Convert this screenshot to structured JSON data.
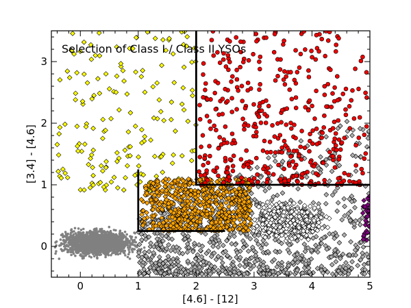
{
  "chart_data": {
    "type": "scatter",
    "title": "Selection of Class I / Class II YSOs",
    "xlabel": "[4.6] - [12]",
    "ylabel": "[3.4] - [4.6]",
    "xlim": [
      -0.5,
      5.0
    ],
    "ylim": [
      -0.5,
      3.5
    ],
    "xticks": [
      0,
      1,
      2,
      3,
      4,
      5
    ],
    "yticks": [
      0,
      1,
      2,
      3
    ],
    "grid": false,
    "selection_boundaries": [
      {
        "name": "class-i-cut",
        "x": [
          2.0,
          2.0,
          5.0
        ],
        "y": [
          3.5,
          1.0,
          1.0
        ]
      },
      {
        "name": "class-ii-cut",
        "x": [
          1.0,
          1.0,
          2.5
        ],
        "y": [
          1.25,
          0.25,
          0.25
        ]
      }
    ],
    "series": [
      {
        "color": "#808080",
        "marker": "dot",
        "approx_count": 3800,
        "region": {
          "x": [
            -0.5,
            2.2
          ],
          "y": [
            -0.3,
            0.9
          ]
        }
      },
      {
        "color": "#b0b0b0",
        "marker": "diamond",
        "approx_count": 2300,
        "region": {
          "x": [
            1.0,
            5.0
          ],
          "y": [
            -0.5,
            3.0
          ]
        }
      },
      {
        "color": "#ffffff",
        "marker": "diamond",
        "approx_count": 700,
        "region": {
          "x": [
            2.4,
            4.8
          ],
          "y": [
            -0.1,
            0.9
          ]
        }
      },
      {
        "color": "#ffff00",
        "marker": "diamond",
        "approx_count": 180,
        "region": {
          "x": [
            -0.5,
            2.0
          ],
          "y": [
            0.9,
            3.5
          ]
        }
      },
      {
        "color": "#ffa500",
        "marker": "diamond",
        "approx_count": 650,
        "region": {
          "x": [
            1.0,
            3.0
          ],
          "y": [
            0.25,
            1.1
          ]
        }
      },
      {
        "color": "#ee0000",
        "marker": "dot",
        "approx_count": 420,
        "region": {
          "x": [
            2.0,
            5.0
          ],
          "y": [
            1.0,
            3.5
          ]
        }
      },
      {
        "color": "#800080",
        "marker": "diamond",
        "approx_count": 30,
        "region": {
          "x": [
            4.85,
            5.0
          ],
          "y": [
            0.1,
            0.9
          ]
        }
      }
    ]
  }
}
